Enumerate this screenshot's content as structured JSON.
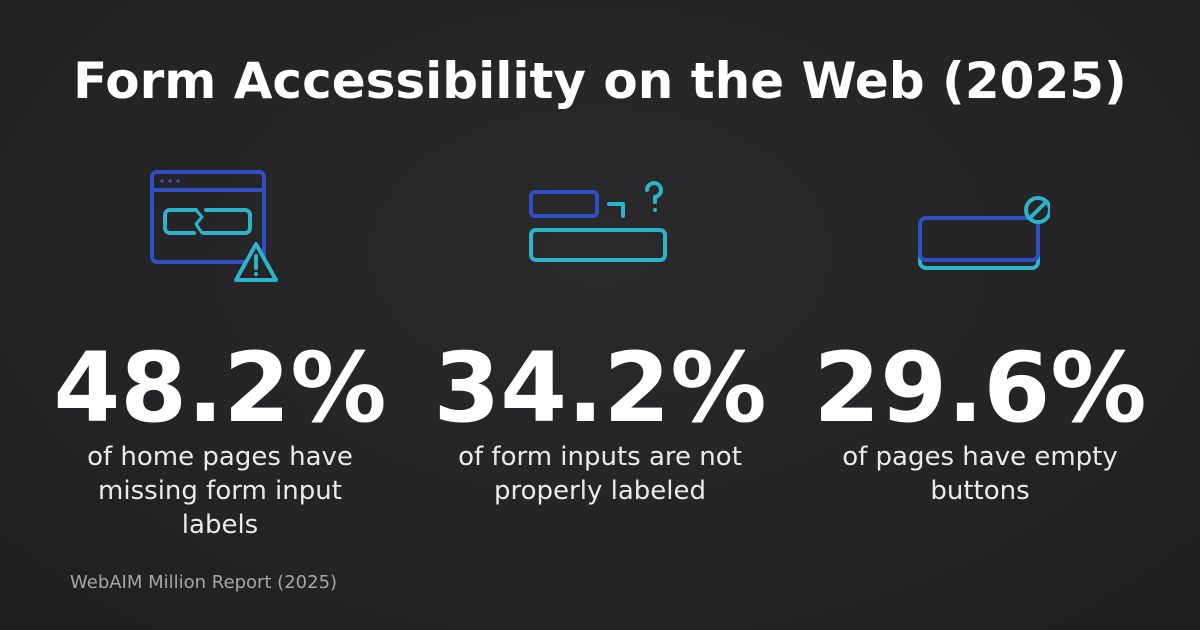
{
  "title": "Form Accessibility on the Web (2025)",
  "colors": {
    "background": "#252527",
    "icon_blue": "#2e4fc4",
    "icon_cyan": "#2ab3c9"
  },
  "stats": [
    {
      "value": "48.2%",
      "caption": "of home pages have missing form input labels",
      "icon": "browser-broken-input-warning-icon"
    },
    {
      "value": "34.2%",
      "caption": "of form inputs are not properly labeled",
      "icon": "disconnected-label-question-icon"
    },
    {
      "value": "29.6%",
      "caption": "of pages have empty buttons",
      "icon": "empty-button-blocked-icon"
    }
  ],
  "source": "WebAIM Million Report (2025)"
}
